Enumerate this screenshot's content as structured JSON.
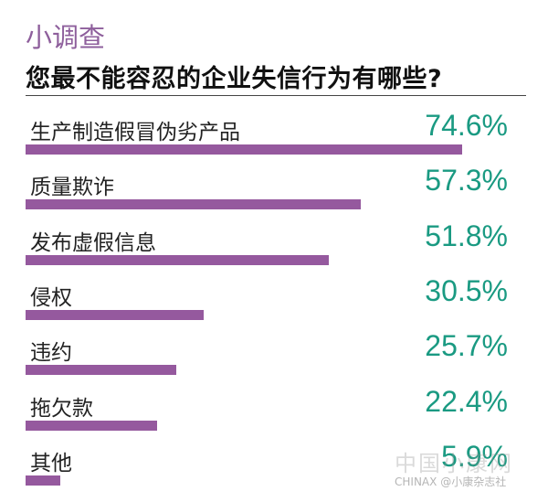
{
  "chart_data": {
    "type": "bar",
    "orientation": "horizontal",
    "kicker": "小调查",
    "title": "您最不能容忍的企业失信行为有哪些?",
    "categories": [
      "生产制造假冒伪劣产品",
      "质量欺诈",
      "发布虚假信息",
      "侵权",
      "违约",
      "拖欠款",
      "其他"
    ],
    "values": [
      74.6,
      57.3,
      51.8,
      30.5,
      25.7,
      22.4,
      5.9
    ],
    "value_labels": [
      "74.6%",
      "57.3%",
      "51.8%",
      "30.5%",
      "25.7%",
      "22.4%",
      "5.9%"
    ],
    "unit": "%",
    "xlim": [
      0,
      100
    ],
    "colors": {
      "bar": "#95599e",
      "value": "#1a9a82",
      "kicker": "#8e5f9c"
    }
  },
  "watermark": {
    "site": "中国小康网",
    "brand": "CHINAX",
    "handle": "@小康杂志社"
  }
}
